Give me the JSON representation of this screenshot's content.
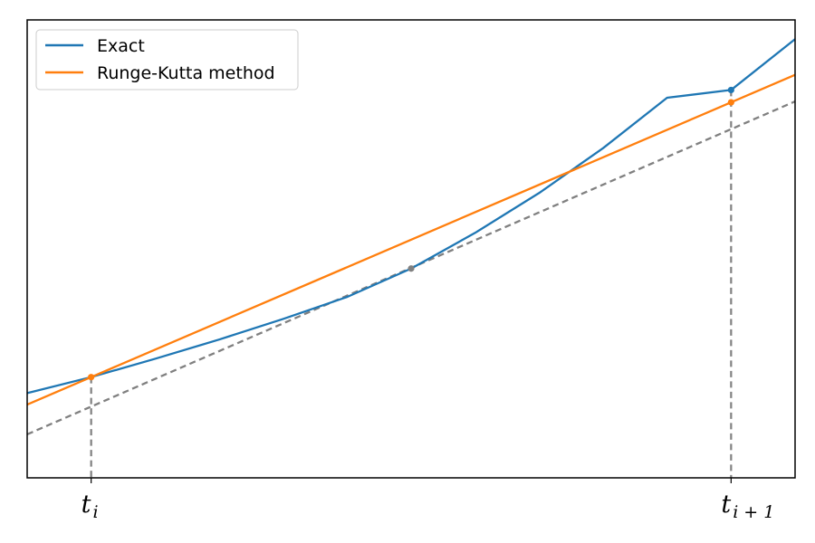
{
  "chart_data": {
    "type": "line",
    "title": "",
    "xlabel": "",
    "ylabel": "",
    "grid": false,
    "legend_position": "top-left",
    "xlim": [
      -0.1,
      1.1
    ],
    "ylim": [
      0.0,
      1.0
    ],
    "x_ticks": [
      {
        "value": 0,
        "base": "t",
        "sub": "i"
      },
      {
        "value": 1,
        "base": "t",
        "sub": "i + 1"
      }
    ],
    "series": [
      {
        "name": "Exact",
        "color": "#1f77b4",
        "style": "solid",
        "x": [
          -0.1,
          0.0,
          0.1,
          0.2,
          0.3,
          0.4,
          0.5,
          0.6,
          0.7,
          0.8,
          0.9,
          1.0,
          1.1
        ],
        "y": [
          0.185,
          0.22,
          0.26,
          0.302,
          0.347,
          0.395,
          0.457,
          0.535,
          0.622,
          0.72,
          0.83,
          0.847,
          0.958
        ]
      },
      {
        "name": "Runge-Kutta method",
        "color": "#ff7f0e",
        "style": "solid",
        "x": [
          -0.1,
          0.0,
          1.0,
          1.1
        ],
        "y": [
          0.16,
          0.22,
          0.82,
          0.88
        ]
      },
      {
        "name": "",
        "color": "#808080",
        "style": "dashed",
        "x": [
          -0.1,
          1.1
        ],
        "y": [
          0.095,
          0.822
        ]
      }
    ],
    "points": [
      {
        "x": 0.0,
        "y": 0.22,
        "color": "#ff7f0e"
      },
      {
        "x": 0.5,
        "y": 0.457,
        "color": "#808080"
      },
      {
        "x": 1.0,
        "y": 0.847,
        "color": "#1f77b4"
      },
      {
        "x": 1.0,
        "y": 0.82,
        "color": "#ff7f0e"
      }
    ],
    "vlines": [
      {
        "x": 0.0,
        "y_top": 0.22,
        "color": "#808080",
        "style": "dashed"
      },
      {
        "x": 1.0,
        "y_top": 0.847,
        "color": "#808080",
        "style": "dashed"
      }
    ]
  }
}
